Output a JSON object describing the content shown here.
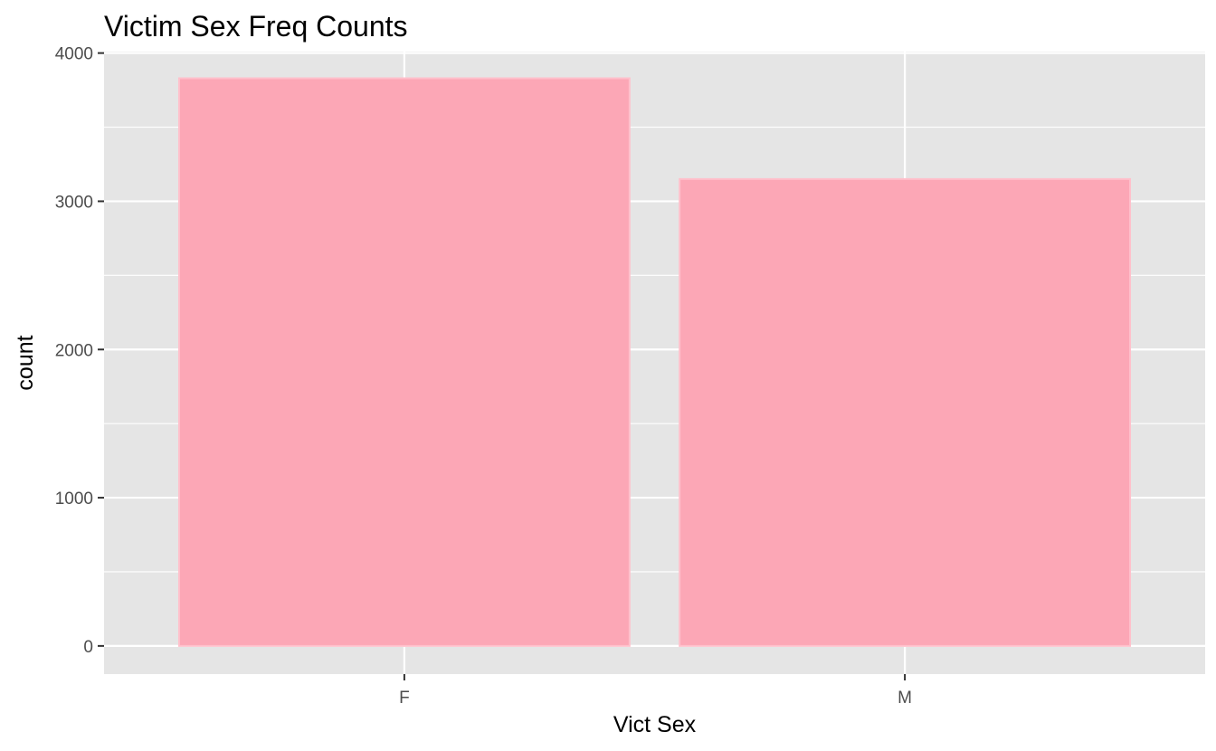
{
  "chart_data": {
    "type": "bar",
    "title": "Victim Sex Freq Counts",
    "xlabel": "Vict Sex",
    "ylabel": "count",
    "categories": [
      "F",
      "M"
    ],
    "values": [
      3830,
      3150
    ],
    "ylim": [
      -190,
      4010
    ],
    "yticks": [
      0,
      1000,
      2000,
      3000,
      4000
    ],
    "ytick_labels": [
      "0",
      "1000",
      "2000",
      "3000",
      "4000"
    ],
    "grid": true,
    "legend": "none",
    "colors": {
      "bar_fill": "#fca7b6",
      "bar_outline": "#ffc0cb",
      "panel_background": "#e5e5e5",
      "grid": "#ffffff"
    }
  }
}
